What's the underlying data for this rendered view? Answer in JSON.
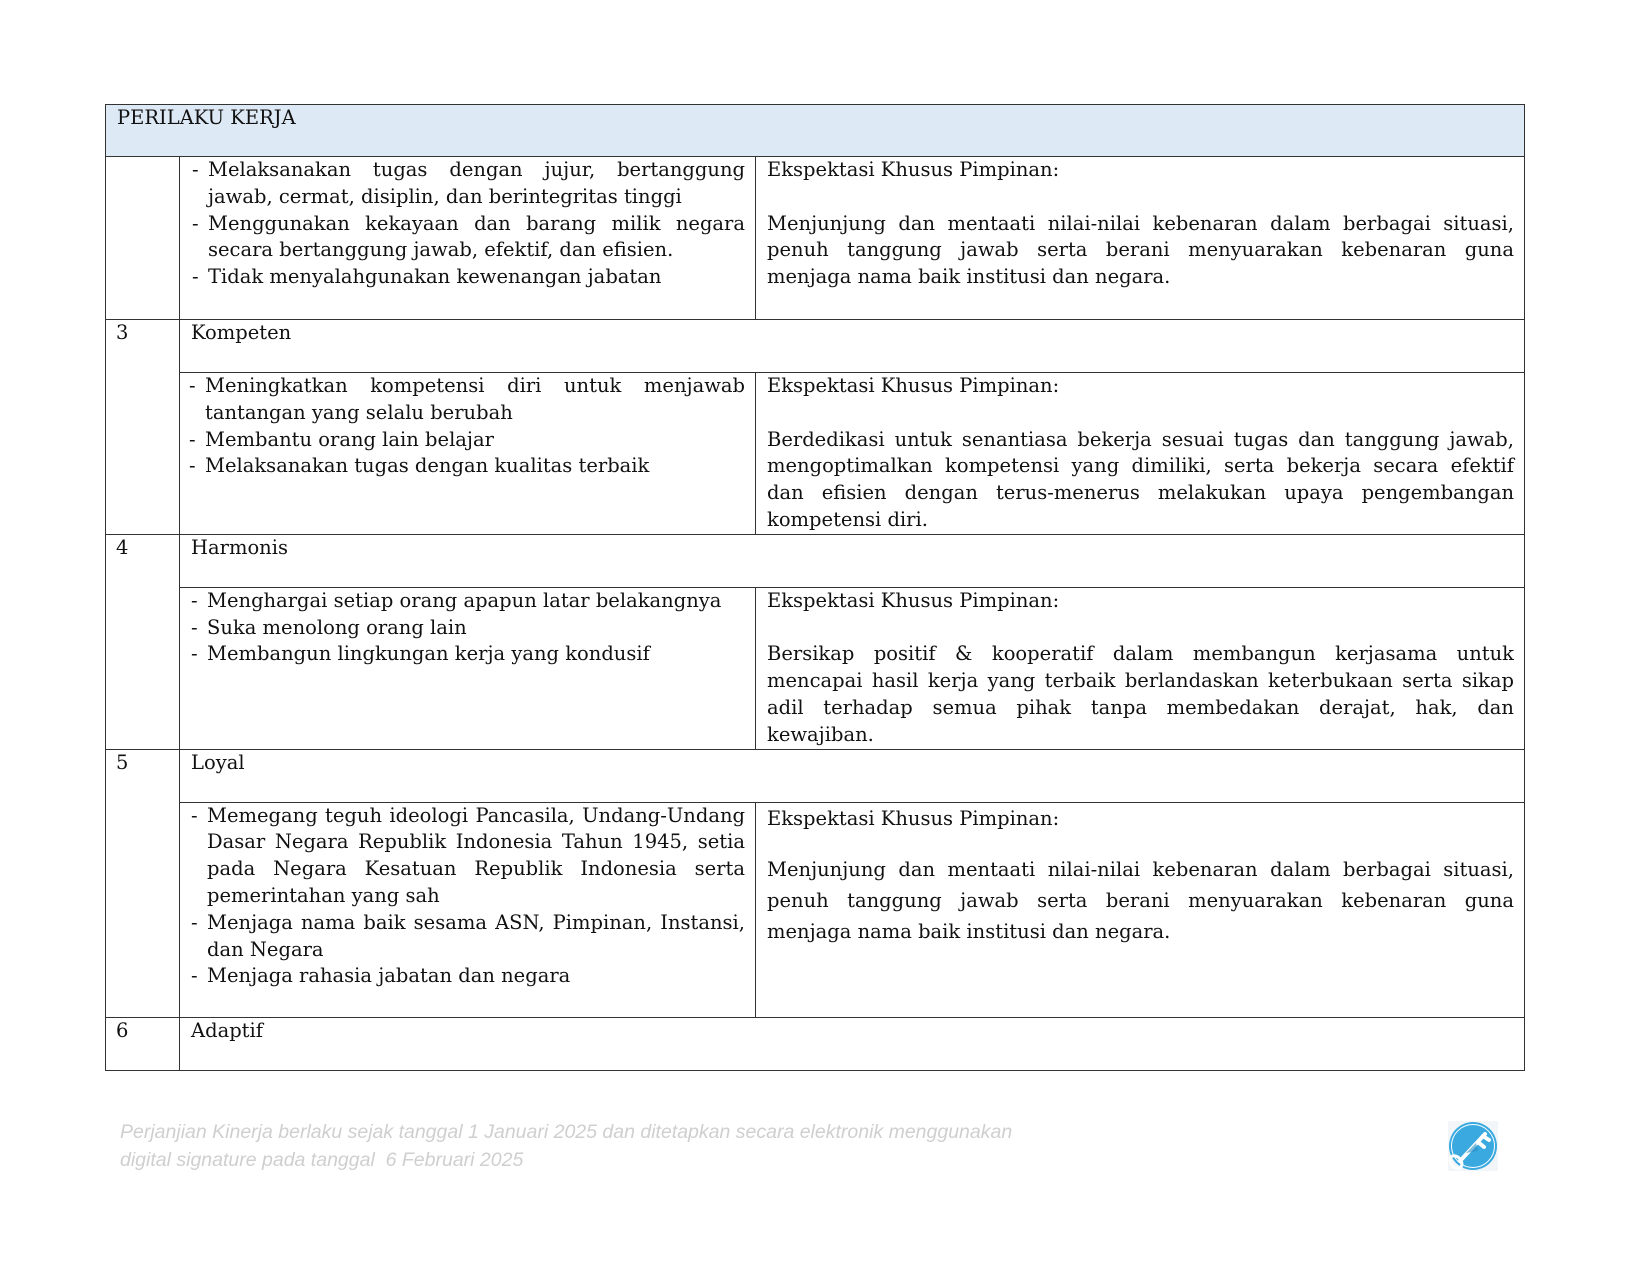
{
  "table": {
    "header": "PERILAKU KERJA",
    "rows": [
      {
        "number": "",
        "title": "",
        "items": [
          "Melaksanakan tugas dengan jujur, bertanggung jawab, cermat, disiplin, dan berintegritas tinggi",
          "Menggunakan kekayaan dan barang milik negara secara bertanggung jawab, efektif, dan efisien.",
          "Tidak menyalahgunakan kewenangan jabatan"
        ],
        "expectation_label": "Ekspektasi Khusus Pimpinan:",
        "expectation": "Menjunjung dan mentaati nilai-nilai kebenaran dalam berbagai situasi, penuh tanggung jawab serta berani menyuarakan kebenaran guna menjaga nama baik institusi dan negara."
      },
      {
        "number": "3",
        "title": "Kompeten",
        "items": [
          "Meningkatkan kompetensi diri untuk menjawab tantangan yang selalu berubah",
          "Membantu orang lain belajar",
          "Melaksanakan tugas dengan kualitas terbaik"
        ],
        "expectation_label": "Ekspektasi Khusus Pimpinan:",
        "expectation": "Berdedikasi untuk senantiasa bekerja sesuai tugas dan tanggung jawab, mengoptimalkan kompetensi yang dimiliki, serta bekerja secara efektif dan efisien dengan terus-menerus melakukan upaya pengembangan kompetensi diri."
      },
      {
        "number": "4",
        "title": "Harmonis",
        "items": [
          "Menghargai setiap orang apapun latar belakangnya",
          "Suka menolong orang lain",
          "Membangun lingkungan kerja yang kondusif"
        ],
        "expectation_label": "Ekspektasi Khusus Pimpinan:",
        "expectation": "Bersikap positif & kooperatif dalam membangun kerjasama untuk mencapai hasil kerja yang terbaik berlandaskan keterbukaan serta sikap adil terhadap semua pihak tanpa membedakan derajat, hak, dan kewajiban."
      },
      {
        "number": "5",
        "title": "Loyal",
        "items": [
          "Memegang teguh ideologi Pancasila, Undang-Undang Dasar Negara Republik Indonesia Tahun 1945, setia pada Negara Kesatuan Republik Indonesia serta pemerintahan yang sah",
          "Menjaga nama baik sesama ASN, Pimpinan, Instansi, dan Negara",
          "Menjaga rahasia jabatan dan negara"
        ],
        "expectation_label": "Ekspektasi Khusus Pimpinan:",
        "expectation": "Menjunjung dan mentaati nilai-nilai kebenaran dalam berbagai situasi, penuh tanggung jawab serta berani menyuarakan kebenaran guna menjaga nama baik institusi dan negara."
      },
      {
        "number": "6",
        "title": "Adaptif"
      }
    ]
  },
  "footer": {
    "line1": "Perjanjian Kinerja berlaku sejak tanggal 1 Januari 2025 dan ditetapkan secara elektronik menggunakan",
    "line2": "digital signature pada tanggal  6 Februari 2025"
  },
  "colors": {
    "header_bg": "#dde9f5",
    "footer_text": "#cfcfcf",
    "key_icon": "#3aa9e0"
  },
  "icons": {
    "signature": "key-icon"
  }
}
